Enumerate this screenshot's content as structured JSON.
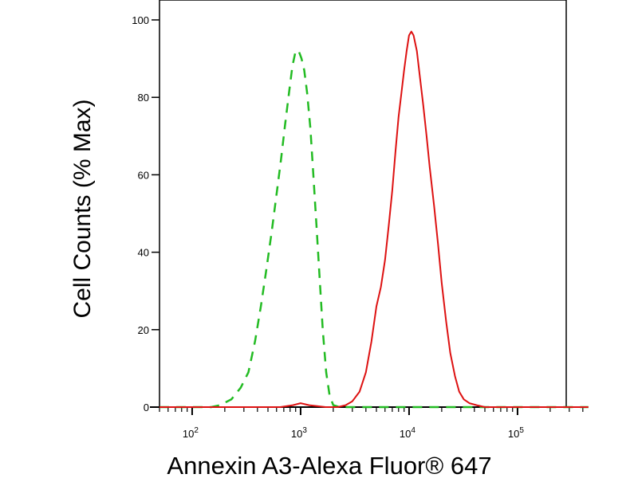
{
  "chart_data": {
    "type": "line",
    "title": "",
    "xlabel": "Annexin A3-Alexa Fluor® 647",
    "ylabel": "Cell Counts (% Max)",
    "x_scale": "log",
    "xlim": [
      50,
      450000
    ],
    "ylim": [
      0,
      100
    ],
    "x_ticks": [
      {
        "value": 100,
        "base": "10",
        "exp": "2"
      },
      {
        "value": 1000,
        "base": "10",
        "exp": "3"
      },
      {
        "value": 10000,
        "base": "10",
        "exp": "4"
      },
      {
        "value": 100000,
        "base": "10",
        "exp": "5"
      }
    ],
    "y_ticks": [
      {
        "value": 0,
        "label": "0"
      },
      {
        "value": 20,
        "label": "20"
      },
      {
        "value": 40,
        "label": "40"
      },
      {
        "value": 60,
        "label": "60"
      },
      {
        "value": 80,
        "label": "80"
      },
      {
        "value": 100,
        "label": "100"
      }
    ],
    "grid": false,
    "legend": "none",
    "series": [
      {
        "color": "#22bb22",
        "style": "dashed",
        "points": [
          [
            50,
            0
          ],
          [
            150,
            0
          ],
          [
            180,
            0.5
          ],
          [
            230,
            2
          ],
          [
            280,
            5
          ],
          [
            330,
            9
          ],
          [
            380,
            17
          ],
          [
            430,
            26
          ],
          [
            480,
            35
          ],
          [
            540,
            45
          ],
          [
            600,
            55
          ],
          [
            660,
            64
          ],
          [
            720,
            73
          ],
          [
            780,
            81
          ],
          [
            840,
            88
          ],
          [
            900,
            92
          ],
          [
            960,
            92
          ],
          [
            1020,
            90
          ],
          [
            1080,
            87
          ],
          [
            1150,
            81
          ],
          [
            1230,
            72
          ],
          [
            1310,
            60
          ],
          [
            1400,
            47
          ],
          [
            1500,
            33
          ],
          [
            1600,
            20
          ],
          [
            1720,
            9
          ],
          [
            1850,
            3
          ],
          [
            2000,
            0.5
          ],
          [
            2300,
            0
          ],
          [
            450000,
            0
          ]
        ]
      },
      {
        "color": "#dd1111",
        "style": "solid",
        "points": [
          [
            50,
            0
          ],
          [
            650,
            0
          ],
          [
            850,
            0.5
          ],
          [
            1000,
            1
          ],
          [
            1200,
            0.5
          ],
          [
            1700,
            0
          ],
          [
            2200,
            0
          ],
          [
            2600,
            0.5
          ],
          [
            3000,
            1.5
          ],
          [
            3500,
            4
          ],
          [
            4000,
            9
          ],
          [
            4500,
            17
          ],
          [
            5000,
            26
          ],
          [
            5500,
            31
          ],
          [
            6000,
            38
          ],
          [
            6500,
            47
          ],
          [
            7000,
            56
          ],
          [
            7500,
            66
          ],
          [
            8000,
            75
          ],
          [
            8500,
            81
          ],
          [
            9000,
            87
          ],
          [
            9500,
            92
          ],
          [
            10000,
            96
          ],
          [
            10500,
            97
          ],
          [
            11000,
            96
          ],
          [
            11800,
            92
          ],
          [
            12500,
            86
          ],
          [
            13500,
            78
          ],
          [
            14500,
            70
          ],
          [
            15500,
            62
          ],
          [
            17000,
            52
          ],
          [
            18500,
            42
          ],
          [
            20000,
            32
          ],
          [
            22000,
            22
          ],
          [
            24000,
            14
          ],
          [
            26500,
            8
          ],
          [
            29000,
            4
          ],
          [
            32000,
            2
          ],
          [
            36000,
            1
          ],
          [
            42000,
            0.5
          ],
          [
            50000,
            0
          ],
          [
            450000,
            0
          ]
        ]
      }
    ]
  }
}
